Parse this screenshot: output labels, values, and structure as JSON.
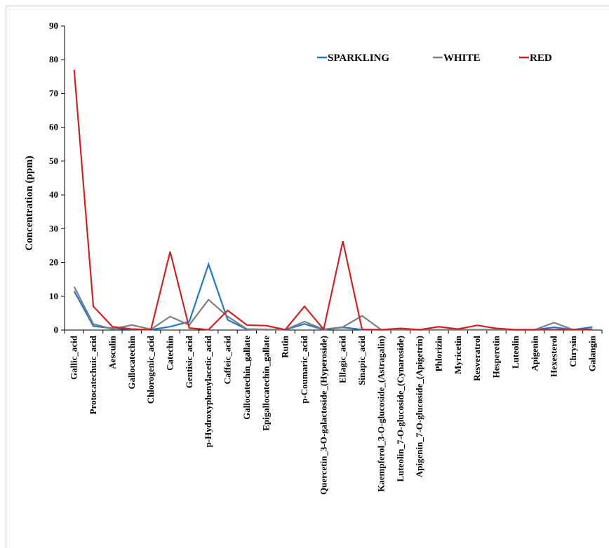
{
  "chart_data": {
    "type": "line",
    "title": "",
    "xlabel": "",
    "ylabel": "Concentration (ppm)",
    "ylim": [
      0,
      90
    ],
    "yticks": [
      0,
      10,
      20,
      30,
      40,
      50,
      60,
      70,
      80,
      90
    ],
    "grid": false,
    "legend_position": "top-right",
    "categories": [
      "Gallic_acid",
      "Protocatechuic_acid",
      "Aesculin",
      "Gallocatechin",
      "Chlorogenic_acid",
      "Catechin",
      "Gentisic_acid",
      "p-Hydroxyphenylacetic_acid",
      "Caffeic_acid",
      "Gallocatechin_gallate",
      "Epigallocatechin_gallate",
      "Rutin",
      "p-Coumaric_acid",
      "Quercetin_3-O-galactoside_(Hyperoside)",
      "Ellagic_acid",
      "Sinapic_acid",
      "Kaempferol_3-O-glucoside_(Astragalin)",
      "Luteolin_7-O-glucoside_(Cynaroside)",
      "Apigenin_7-O-glucoside_(Apigetrin)",
      "Phlorizin",
      "Myricetin",
      "Resveratrol",
      "Hesperetin",
      "Luteolin",
      "Apigenin",
      "Hexesterol",
      "Chrysin",
      "Galangin"
    ],
    "series": [
      {
        "name": "SPARKLING",
        "color": "#1f78c8",
        "values": [
          11.5,
          1.2,
          0.5,
          0.2,
          0.1,
          1.0,
          2.5,
          19.5,
          3.0,
          0.2,
          0.1,
          0.1,
          1.8,
          0.1,
          0.8,
          0.1,
          0.1,
          0.1,
          0.1,
          0.1,
          0.1,
          0.1,
          0.1,
          0.1,
          0.1,
          0.8,
          0.1,
          0.9
        ]
      },
      {
        "name": "WHITE",
        "color": "#7f7f7f",
        "values": [
          12.8,
          1.8,
          0.3,
          1.5,
          0.2,
          4.0,
          1.5,
          9.0,
          4.0,
          0.3,
          0.2,
          0.1,
          2.5,
          0.2,
          0.9,
          4.2,
          0.1,
          0.1,
          0.1,
          0.1,
          0.1,
          0.1,
          0.1,
          0.1,
          0.1,
          2.2,
          0.1,
          0.3
        ]
      },
      {
        "name": "RED",
        "color": "#d42020",
        "values": [
          77.0,
          7.0,
          1.0,
          0.3,
          0.1,
          23.2,
          0.6,
          0.1,
          5.8,
          1.5,
          1.3,
          0.1,
          7.0,
          0.2,
          26.3,
          0.2,
          0.1,
          0.5,
          0.1,
          1.0,
          0.3,
          1.4,
          0.5,
          0.1,
          0.1,
          0.1,
          0.1,
          0.1
        ]
      }
    ]
  }
}
